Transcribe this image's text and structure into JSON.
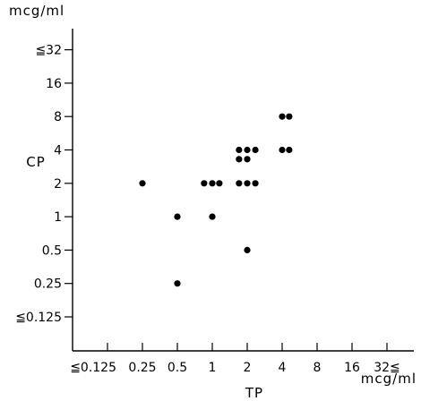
{
  "chart_data": {
    "type": "scatter",
    "xlabel": "TP",
    "ylabel": "CP",
    "x_unit": "mcg/ml",
    "y_unit": "mcg/ml",
    "x_scale": "log2",
    "y_scale": "log2",
    "grid": false,
    "x_ticks": [
      {
        "value": 0.125,
        "label": "≦0.125"
      },
      {
        "value": 0.25,
        "label": "0.25"
      },
      {
        "value": 0.5,
        "label": "0.5"
      },
      {
        "value": 1,
        "label": "1"
      },
      {
        "value": 2,
        "label": "2"
      },
      {
        "value": 4,
        "label": "4"
      },
      {
        "value": 8,
        "label": "8"
      },
      {
        "value": 16,
        "label": "16"
      },
      {
        "value": 32,
        "label": "32≦"
      }
    ],
    "y_ticks": [
      {
        "value": 0.125,
        "label": "≦0.125"
      },
      {
        "value": 0.25,
        "label": "0.25"
      },
      {
        "value": 0.5,
        "label": "0.5"
      },
      {
        "value": 1,
        "label": "1"
      },
      {
        "value": 2,
        "label": "2"
      },
      {
        "value": 4,
        "label": "4"
      },
      {
        "value": 8,
        "label": "8"
      },
      {
        "value": 16,
        "label": "16"
      },
      {
        "value": 32,
        "label": "≦32"
      }
    ],
    "points": [
      {
        "x": 0.25,
        "y": 2
      },
      {
        "x": 0.5,
        "y": 1
      },
      {
        "x": 0.5,
        "y": 0.25
      },
      {
        "x": 1,
        "y": 1
      },
      {
        "x": 0.85,
        "y": 2
      },
      {
        "x": 1,
        "y": 2
      },
      {
        "x": 1.15,
        "y": 2
      },
      {
        "x": 1.7,
        "y": 2
      },
      {
        "x": 2,
        "y": 2
      },
      {
        "x": 2.35,
        "y": 2
      },
      {
        "x": 1.7,
        "y": 3.3
      },
      {
        "x": 2,
        "y": 3.3
      },
      {
        "x": 1.7,
        "y": 4
      },
      {
        "x": 2,
        "y": 4
      },
      {
        "x": 2.35,
        "y": 4
      },
      {
        "x": 2,
        "y": 0.5
      },
      {
        "x": 4,
        "y": 4
      },
      {
        "x": 4.6,
        "y": 4
      },
      {
        "x": 4,
        "y": 8
      },
      {
        "x": 4.6,
        "y": 8
      }
    ]
  }
}
